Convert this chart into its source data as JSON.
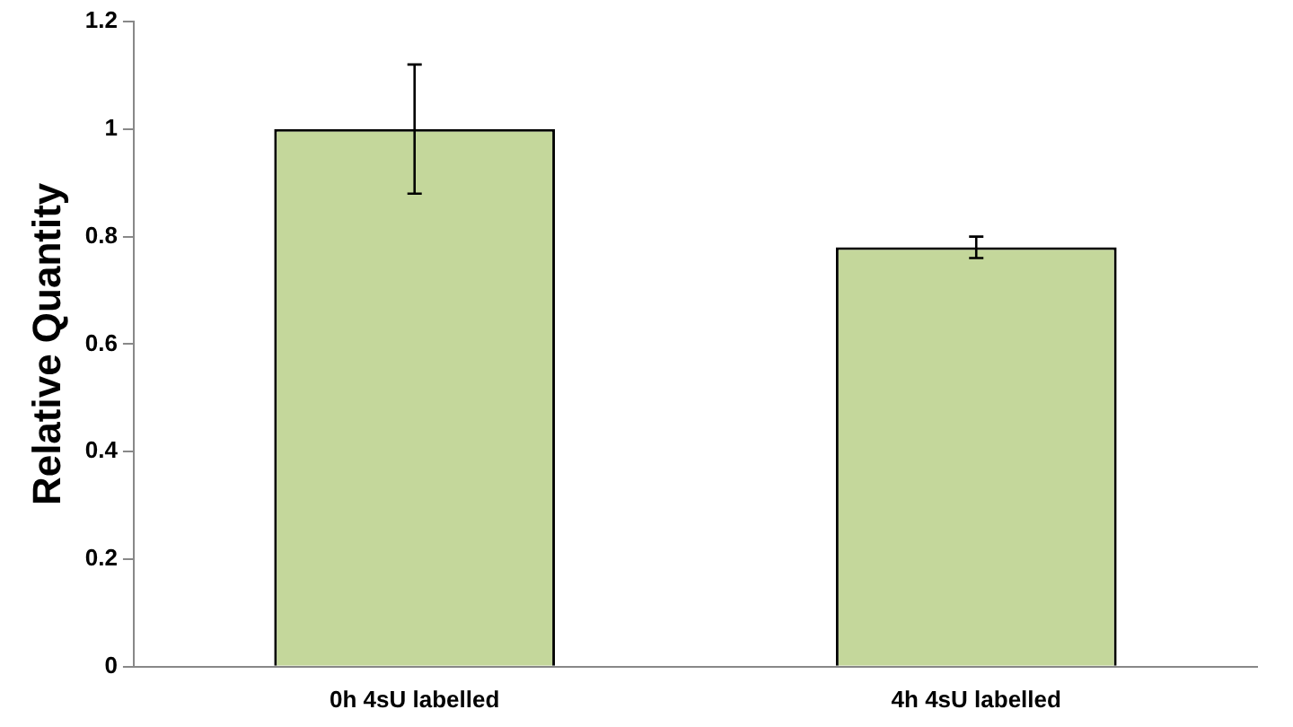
{
  "chart_data": {
    "type": "bar",
    "ylabel": "Relative Quantity",
    "categories": [
      "0h 4sU labelled",
      "4h 4sU labelled"
    ],
    "values": [
      1,
      0.78
    ],
    "errors": [
      0.12,
      0.02
    ],
    "color": "#c4d79b",
    "ylim": [
      0,
      1.2
    ],
    "yticks": [
      0,
      0.2,
      0.4,
      0.6,
      0.8,
      1,
      1.2
    ],
    "grid": false,
    "legend": false
  }
}
